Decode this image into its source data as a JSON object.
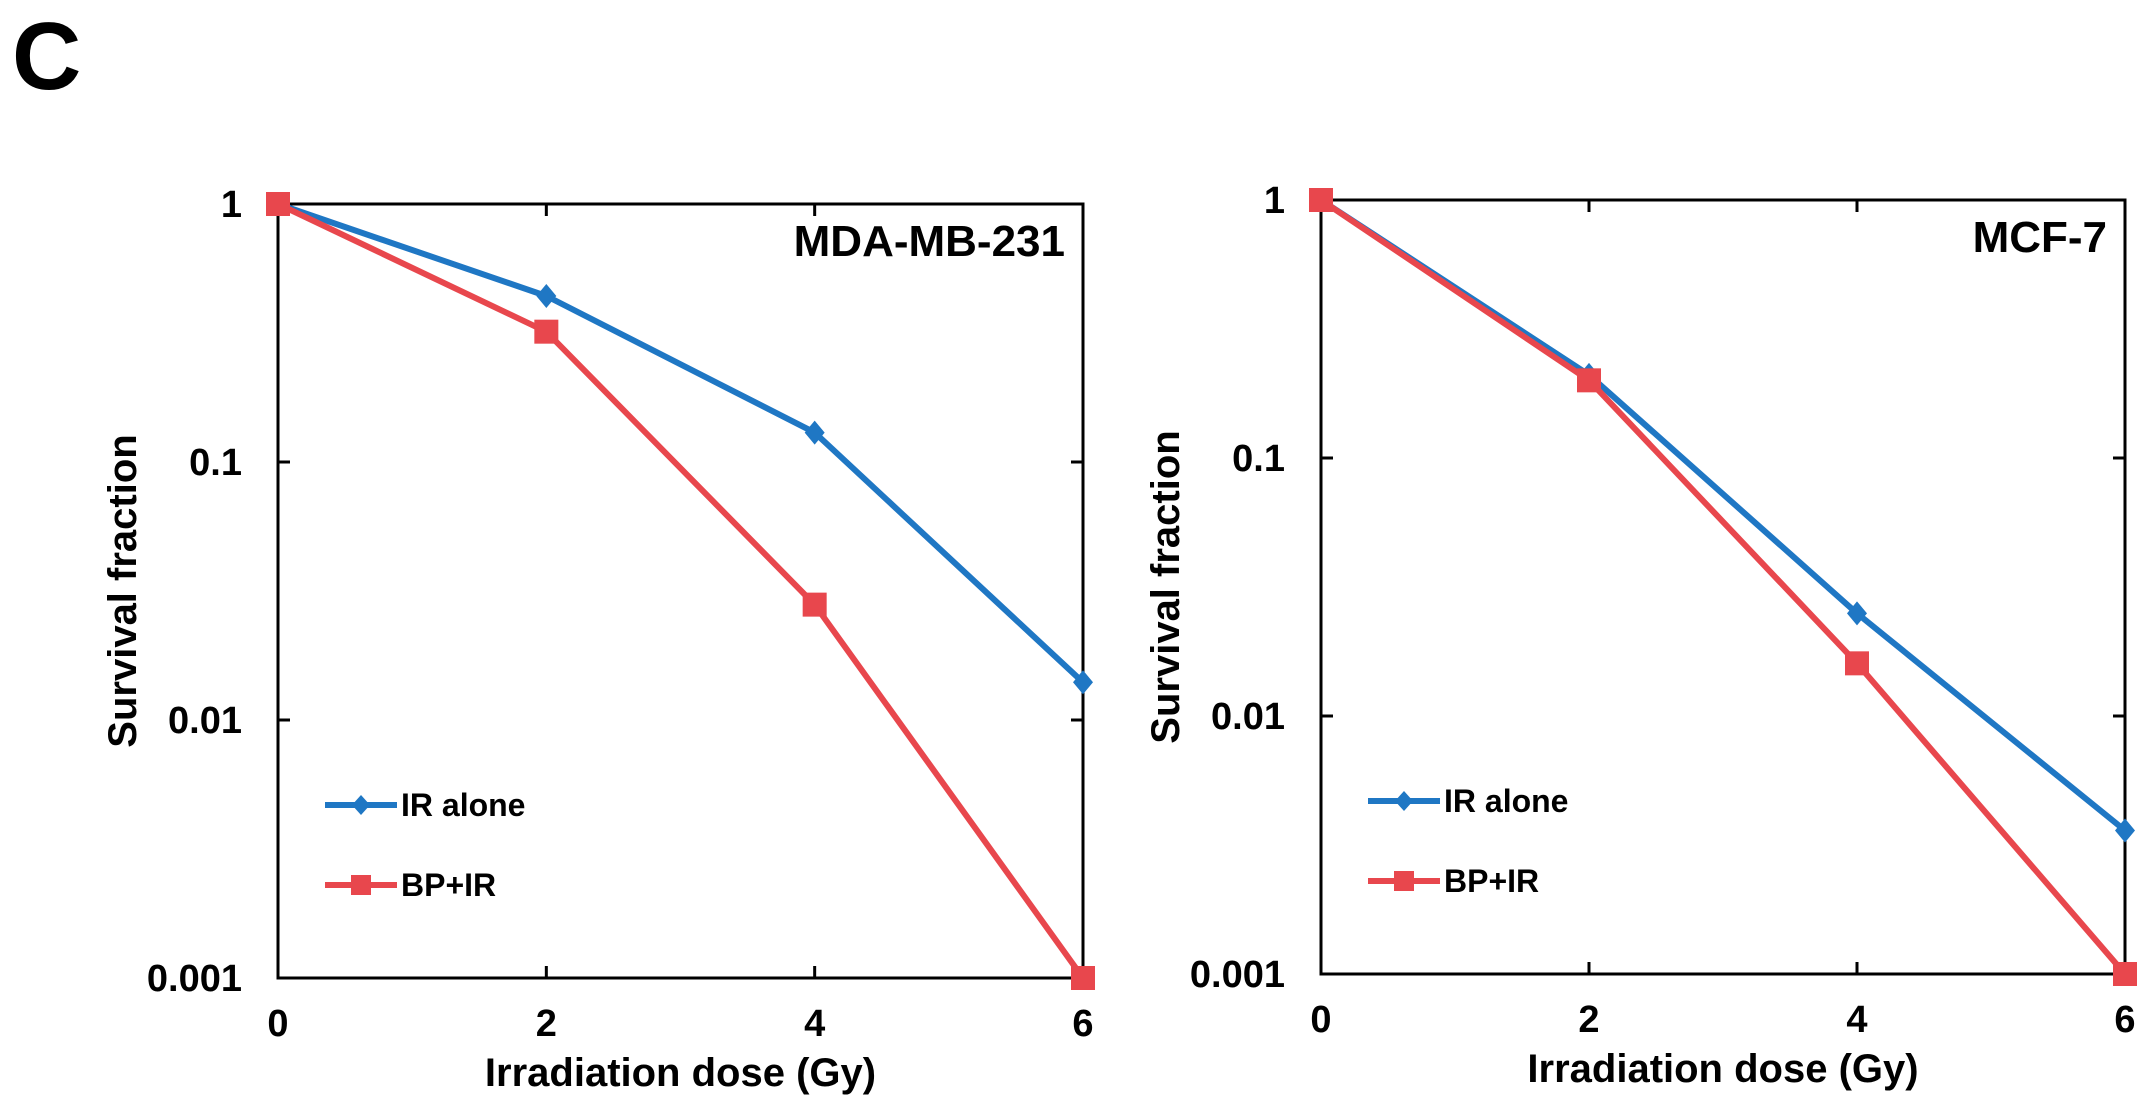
{
  "panel_label": "C",
  "colors": {
    "ir_alone": "#1f77c4",
    "bp_ir": "#e8474d",
    "axis": "#000000"
  },
  "chart_data": [
    {
      "type": "line",
      "title": "MDA-MB-231",
      "xlabel": "Irradiation dose (Gy)",
      "ylabel": "Survival fraction",
      "y_scale": "log",
      "xlim": [
        0,
        6
      ],
      "ylim": [
        0.001,
        1
      ],
      "x_ticks": [
        0,
        2,
        4,
        6
      ],
      "x_tick_labels": [
        "0",
        "2",
        "4",
        "6"
      ],
      "y_ticks": [
        1,
        0.1,
        0.01,
        0.001
      ],
      "y_tick_labels": [
        "1",
        "0.1",
        "0.01",
        "0.001"
      ],
      "x": [
        0,
        2,
        4,
        6
      ],
      "series": [
        {
          "name": "IR alone",
          "marker": "diamond",
          "color_key": "ir_alone",
          "values": [
            1,
            0.44,
            0.13,
            0.014
          ]
        },
        {
          "name": "BP+IR",
          "marker": "square",
          "color_key": "bp_ir",
          "values": [
            1,
            0.32,
            0.028,
            0.001
          ]
        }
      ],
      "legend": "bottom-left",
      "grid": false
    },
    {
      "type": "line",
      "title": "MCF-7",
      "xlabel": "Irradiation dose (Gy)",
      "ylabel": "Survival fraction",
      "y_scale": "log",
      "xlim": [
        0,
        6
      ],
      "ylim": [
        0.001,
        1
      ],
      "x_ticks": [
        0,
        2,
        4,
        6
      ],
      "x_tick_labels": [
        "0",
        "2",
        "4",
        "6"
      ],
      "y_ticks": [
        1,
        0.1,
        0.01,
        0.001
      ],
      "y_tick_labels": [
        "1",
        "0.1",
        "0.01",
        "0.001"
      ],
      "x": [
        0,
        2,
        4,
        6
      ],
      "series": [
        {
          "name": "IR alone",
          "marker": "diamond",
          "color_key": "ir_alone",
          "values": [
            1,
            0.21,
            0.025,
            0.0036
          ]
        },
        {
          "name": "BP+IR",
          "marker": "square",
          "color_key": "bp_ir",
          "values": [
            1,
            0.2,
            0.016,
            0.001
          ]
        }
      ],
      "legend": "bottom-left",
      "grid": false
    }
  ]
}
